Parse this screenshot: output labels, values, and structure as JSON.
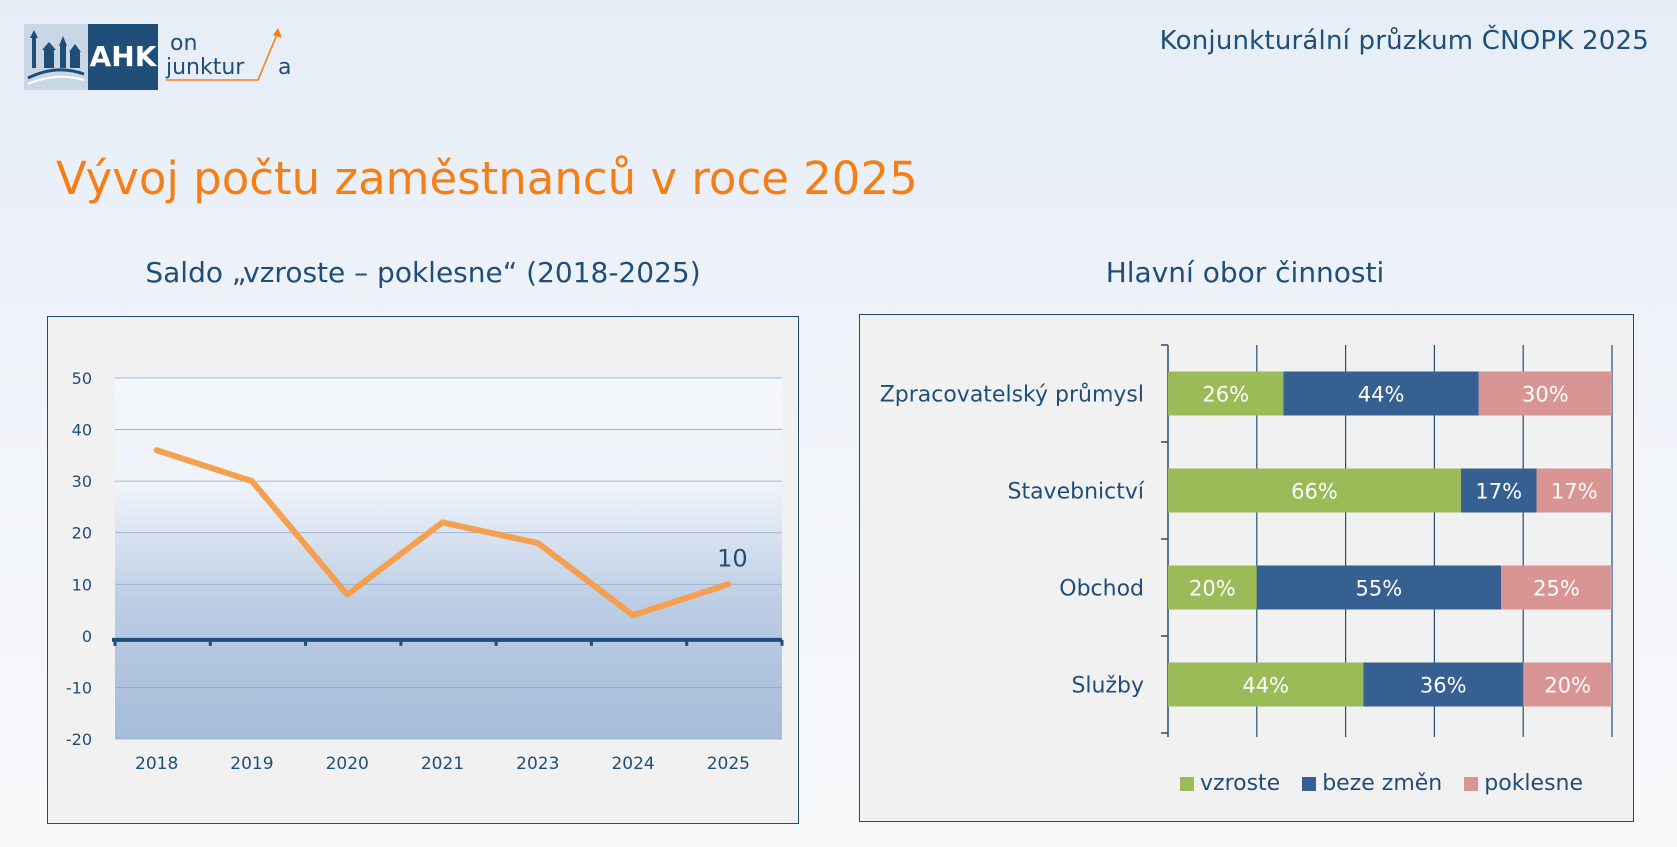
{
  "header": {
    "logo_text": "AHK",
    "logo_tagline_top": "on",
    "logo_tagline_bottom": "junktur",
    "logo_tagline_end": "a",
    "report_title": "Konjunkturální průzkum ČNOPK 2025"
  },
  "page_title": "Vývoj počtu zaměstnanců v roce 2025",
  "colors": {
    "title_orange": "#f57f17",
    "navy": "#1f4e79",
    "line_orange": "#f4a04f",
    "vzroste": "#9bbb59",
    "beze_zmen": "#376092",
    "poklesne": "#d99594"
  },
  "chart_data": [
    {
      "type": "line",
      "title": "Saldo „vzroste – poklesne“ (2018-2025)",
      "categories": [
        "2018",
        "2019",
        "2020",
        "2021",
        "2023",
        "2024",
        "2025"
      ],
      "values": [
        36,
        30,
        8,
        22,
        18,
        4,
        10
      ],
      "ylim": [
        -20,
        50
      ],
      "yticks": [
        "50",
        "40",
        "30",
        "20",
        "10",
        "0",
        "-10",
        "-20"
      ],
      "data_label": "10",
      "grid": true
    },
    {
      "type": "bar",
      "stacked": true,
      "orientation": "horizontal",
      "title": "Hlavní obor činnosti",
      "categories": [
        "Zpracovatelský průmysl",
        "Stavebnictví",
        "Obchod",
        "Služby"
      ],
      "series": [
        {
          "name": "vzroste",
          "values": [
            26,
            66,
            20,
            44
          ],
          "labels": [
            "26%",
            "66%",
            "20%",
            "44%"
          ]
        },
        {
          "name": "beze změn",
          "values": [
            44,
            17,
            55,
            36
          ],
          "labels": [
            "44%",
            "17%",
            "55%",
            "36%"
          ]
        },
        {
          "name": "poklesne",
          "values": [
            30,
            17,
            25,
            20
          ],
          "labels": [
            "30%",
            "17%",
            "25%",
            "20%"
          ]
        }
      ],
      "xlim": [
        0,
        100
      ],
      "legend": "bottom-right"
    }
  ]
}
